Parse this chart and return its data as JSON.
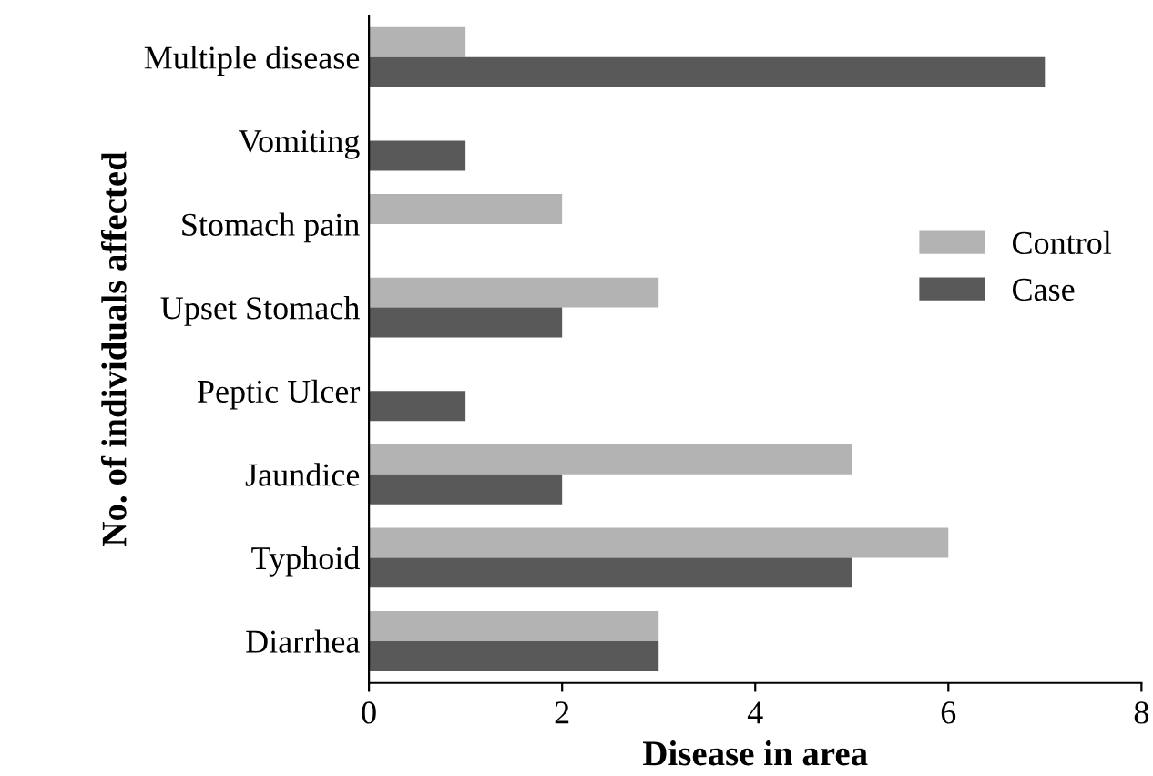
{
  "chart_data": {
    "type": "bar",
    "orientation": "horizontal",
    "xlabel": "Disease in area",
    "ylabel": "No. of individuals affected",
    "categories": [
      "Multiple disease",
      "Vomiting",
      "Stomach pain",
      "Upset Stomach",
      "Peptic Ulcer",
      "Jaundice",
      "Typhoid",
      "Diarrhea"
    ],
    "series": [
      {
        "name": "Control",
        "color": "#b3b3b3",
        "values": [
          1,
          0,
          2,
          3,
          0,
          5,
          6,
          3
        ]
      },
      {
        "name": "Case",
        "color": "#595959",
        "values": [
          7,
          1,
          0,
          2,
          1,
          2,
          5,
          3
        ]
      }
    ],
    "xlim": [
      0,
      8
    ],
    "xticks": [
      0,
      2,
      4,
      6,
      8
    ],
    "grid": false,
    "legend": "right"
  }
}
